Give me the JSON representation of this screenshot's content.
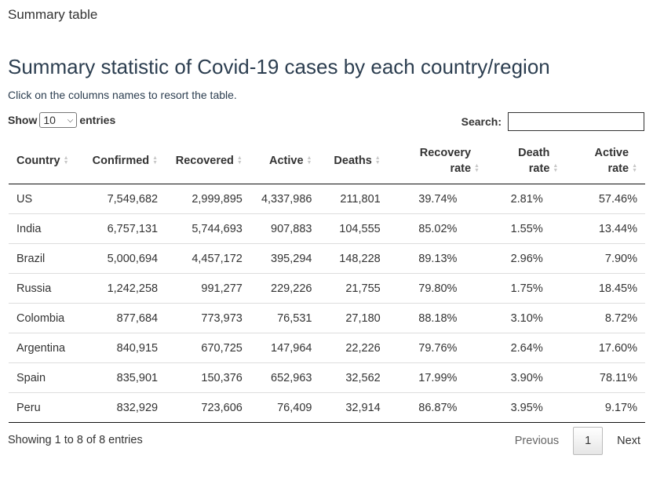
{
  "tab_title": "Summary table",
  "heading": "Summary statistic of Covid-19 cases by each country/region",
  "subtitle": "Click on the columns names to resort the table.",
  "length_control": {
    "show_label": "Show",
    "selected": "10",
    "entries_label": "entries"
  },
  "search": {
    "label": "Search:",
    "value": ""
  },
  "columns": [
    {
      "label": "Country"
    },
    {
      "label": "Confirmed"
    },
    {
      "label": "Recovered"
    },
    {
      "label": "Active"
    },
    {
      "label": "Deaths"
    },
    {
      "label_line1": "Recovery",
      "label_line2": "rate"
    },
    {
      "label_line1": "Death",
      "label_line2": "rate"
    },
    {
      "label_line1": "Active",
      "label_line2": "rate"
    }
  ],
  "rows": [
    {
      "country": "US",
      "confirmed": "7,549,682",
      "recovered": "2,999,895",
      "active": "4,337,986",
      "deaths": "211,801",
      "recovery_rate": "39.74%",
      "death_rate": "2.81%",
      "active_rate": "57.46%"
    },
    {
      "country": "India",
      "confirmed": "6,757,131",
      "recovered": "5,744,693",
      "active": "907,883",
      "deaths": "104,555",
      "recovery_rate": "85.02%",
      "death_rate": "1.55%",
      "active_rate": "13.44%"
    },
    {
      "country": "Brazil",
      "confirmed": "5,000,694",
      "recovered": "4,457,172",
      "active": "395,294",
      "deaths": "148,228",
      "recovery_rate": "89.13%",
      "death_rate": "2.96%",
      "active_rate": "7.90%"
    },
    {
      "country": "Russia",
      "confirmed": "1,242,258",
      "recovered": "991,277",
      "active": "229,226",
      "deaths": "21,755",
      "recovery_rate": "79.80%",
      "death_rate": "1.75%",
      "active_rate": "18.45%"
    },
    {
      "country": "Colombia",
      "confirmed": "877,684",
      "recovered": "773,973",
      "active": "76,531",
      "deaths": "27,180",
      "recovery_rate": "88.18%",
      "death_rate": "3.10%",
      "active_rate": "8.72%"
    },
    {
      "country": "Argentina",
      "confirmed": "840,915",
      "recovered": "670,725",
      "active": "147,964",
      "deaths": "22,226",
      "recovery_rate": "79.76%",
      "death_rate": "2.64%",
      "active_rate": "17.60%"
    },
    {
      "country": "Spain",
      "confirmed": "835,901",
      "recovered": "150,376",
      "active": "652,963",
      "deaths": "32,562",
      "recovery_rate": "17.99%",
      "death_rate": "3.90%",
      "active_rate": "78.11%"
    },
    {
      "country": "Peru",
      "confirmed": "832,929",
      "recovered": "723,606",
      "active": "76,409",
      "deaths": "32,914",
      "recovery_rate": "86.87%",
      "death_rate": "3.95%",
      "active_rate": "9.17%"
    }
  ],
  "footer": {
    "info": "Showing 1 to 8 of 8 entries",
    "previous": "Previous",
    "current_page": "1",
    "next": "Next"
  },
  "colors": {
    "heading": "#2c3e50",
    "text": "#333333",
    "row_divider": "#dddddd",
    "sort_icon": "#c8c8c8"
  },
  "icons": {
    "sort": "sort-both-icon",
    "select": "chevron-down-icon"
  }
}
